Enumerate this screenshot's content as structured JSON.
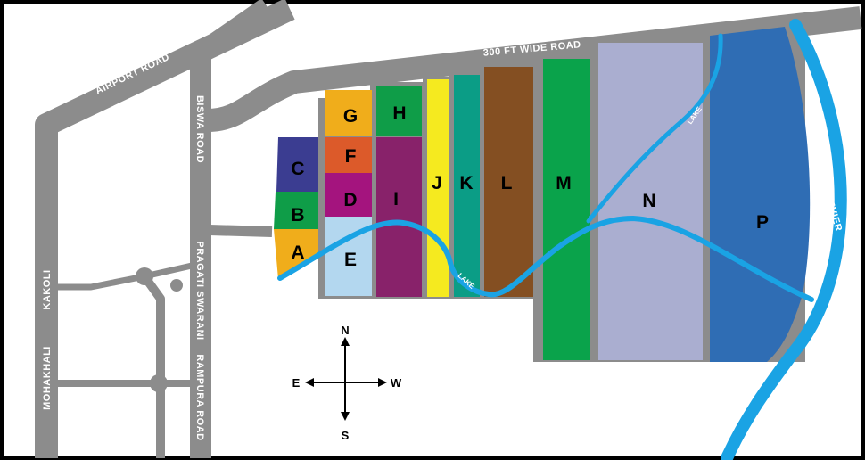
{
  "roads": {
    "airport_road": "AIRPORT ROAD",
    "biswa_road": "BISWA ROAD",
    "wide_road": "300 FT WIDE ROAD",
    "pragati_swarani": "PRAGATI SWARANI",
    "rampura_road": "RAMPURA ROAD",
    "kakoli": "KAKOLI",
    "mohakhali": "MOHAKHALI"
  },
  "water": {
    "lake_label_1": "LAKE",
    "lake_label_2": "LAKE",
    "river": "BALU REVIER"
  },
  "sectors": {
    "A": {
      "label": "A",
      "color": "#f0ad1b"
    },
    "B": {
      "label": "B",
      "color": "#0f9d48"
    },
    "C": {
      "label": "C",
      "color": "#3b3d91"
    },
    "D": {
      "label": "D",
      "color": "#a4147e"
    },
    "E": {
      "label": "E",
      "color": "#b3d7ef"
    },
    "F": {
      "label": "F",
      "color": "#dc5a2a"
    },
    "G": {
      "label": "G",
      "color": "#f0ad1b"
    },
    "H": {
      "label": "H",
      "color": "#0f9d48"
    },
    "I": {
      "label": "I",
      "color": "#88226a"
    },
    "J": {
      "label": "J",
      "color": "#f5ea1f"
    },
    "K": {
      "label": "K",
      "color": "#0b9d86"
    },
    "L": {
      "label": "L",
      "color": "#844f22"
    },
    "M": {
      "label": "M",
      "color": "#0aa34b"
    },
    "N": {
      "label": "N",
      "color": "#aaaed0"
    },
    "P": {
      "label": "P",
      "color": "#2f6db4"
    }
  },
  "compass": {
    "north": "N",
    "south": "S",
    "east": "E",
    "west": "W"
  },
  "colors": {
    "road": "#8c8c8c",
    "water": "#1aa3e4",
    "frame": "#000000"
  }
}
